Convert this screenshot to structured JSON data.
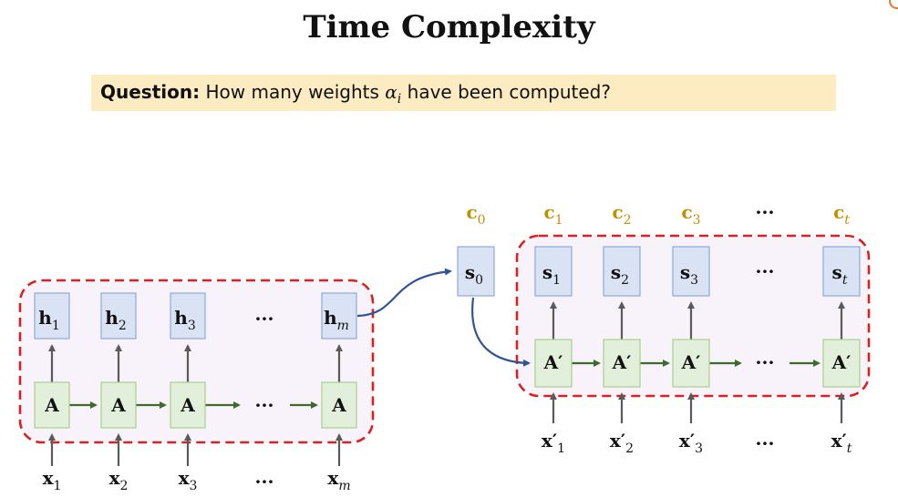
{
  "title": "Time Complexity",
  "question": {
    "label": "Question:",
    "text_before": "How many weights",
    "symbol": "α",
    "symbol_sub": "i",
    "text_after": "have been computed?"
  },
  "encoder": {
    "hidden": [
      {
        "base": "h",
        "sub": "1"
      },
      {
        "base": "h",
        "sub": "2"
      },
      {
        "base": "h",
        "sub": "3"
      },
      {
        "base": "h",
        "sub": "m"
      }
    ],
    "cell_label": "A",
    "inputs": [
      {
        "base": "x",
        "sub": "1"
      },
      {
        "base": "x",
        "sub": "2"
      },
      {
        "base": "x",
        "sub": "3"
      },
      {
        "base": "x",
        "sub": "m"
      }
    ],
    "ellipsis": "···"
  },
  "decoder": {
    "initial_state": {
      "base": "s",
      "sub": "0"
    },
    "initial_context": {
      "base": "c",
      "sub": "0"
    },
    "contexts": [
      {
        "base": "c",
        "sub": "1"
      },
      {
        "base": "c",
        "sub": "2"
      },
      {
        "base": "c",
        "sub": "3"
      },
      {
        "base": "c",
        "sub": "t"
      }
    ],
    "states": [
      {
        "base": "s",
        "sub": "1"
      },
      {
        "base": "s",
        "sub": "2"
      },
      {
        "base": "s",
        "sub": "3"
      },
      {
        "base": "s",
        "sub": "t"
      }
    ],
    "cell_label": "A′",
    "inputs": [
      {
        "base": "x",
        "prime": "′",
        "sub": "1"
      },
      {
        "base": "x",
        "prime": "′",
        "sub": "2"
      },
      {
        "base": "x",
        "prime": "′",
        "sub": "3"
      },
      {
        "base": "x",
        "prime": "′",
        "sub": "t"
      }
    ],
    "ellipsis": "···"
  },
  "colors": {
    "h_box": "#dae3f3",
    "h_border": "#8eaadb",
    "a_box": "#e2efda",
    "a_border": "#a9d08e",
    "dashed_border": "#d62222",
    "region_fill": "#f8f3fa",
    "green_arrow": "#3e6b2a",
    "gray_arrow": "#5a5a5a",
    "blue_curve": "#2f5597",
    "gold_text": "#c09000",
    "question_bg": "#fdebc2"
  }
}
